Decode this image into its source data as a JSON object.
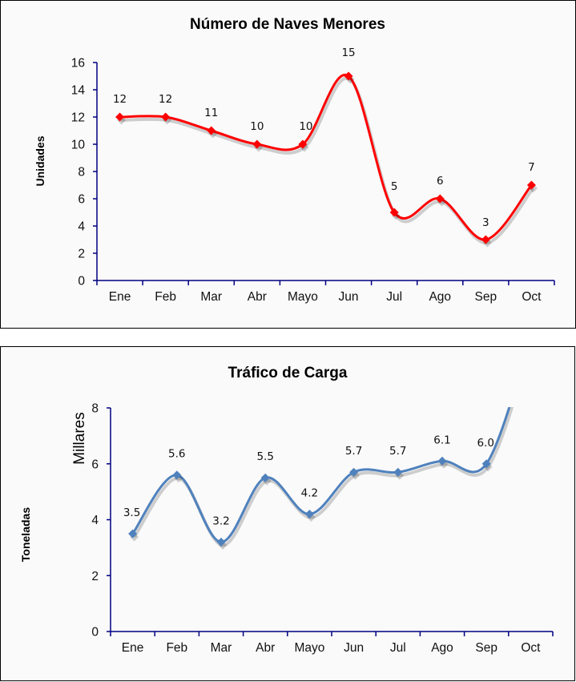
{
  "chart_data": [
    {
      "type": "line",
      "title": "Número de Naves Menores",
      "xlabel": "",
      "ylabel": "Unidades",
      "categories": [
        "Ene",
        "Feb",
        "Mar",
        "Abr",
        "Mayo",
        "Jun",
        "Jul",
        "Ago",
        "Sep",
        "Oct"
      ],
      "series": [
        {
          "name": "Naves Menores",
          "values": [
            12,
            12,
            11,
            10,
            10,
            15,
            5,
            6,
            3,
            7
          ],
          "color": "#ff0000"
        }
      ],
      "data_labels": [
        "12",
        "12",
        "11",
        "10",
        "10",
        "15",
        "5",
        "6",
        "3",
        "7"
      ],
      "ylim": [
        0,
        16
      ],
      "yticks": [
        0,
        2,
        4,
        6,
        8,
        10,
        12,
        14,
        16
      ],
      "ytick_labels": [
        "0",
        "2",
        "4",
        "6",
        "8",
        "10",
        "12",
        "14",
        "16"
      ],
      "grid": false,
      "legend": "none",
      "marker": "diamond",
      "smooth": true,
      "axis_color": "#000080"
    },
    {
      "type": "line",
      "title": "Tráfico de Carga",
      "xlabel": "",
      "ylabel": "Toneladas",
      "y_unit_label": "Millares",
      "categories": [
        "Ene",
        "Feb",
        "Mar",
        "Abr",
        "Mayo",
        "Jun",
        "Jul",
        "Ago",
        "Sep",
        "Oct"
      ],
      "series": [
        {
          "name": "Tráfico de Carga",
          "values": [
            3.5,
            5.6,
            3.2,
            5.5,
            4.2,
            5.7,
            5.7,
            6.1,
            6.0,
            null
          ],
          "color": "#4f81bd"
        }
      ],
      "data_labels": [
        "3.5",
        "5.6",
        "3.2",
        "5.5",
        "4.2",
        "5.7",
        "5.7",
        "6.1",
        "6.0",
        ""
      ],
      "ylim": [
        0,
        8
      ],
      "yticks": [
        0,
        2,
        4,
        6,
        8
      ],
      "ytick_labels": [
        "0",
        "2",
        "4",
        "6",
        "8"
      ],
      "grid": false,
      "legend": "none",
      "marker": "diamond",
      "smooth": true,
      "clipped_above_max": true,
      "axis_color": "#000080"
    }
  ]
}
